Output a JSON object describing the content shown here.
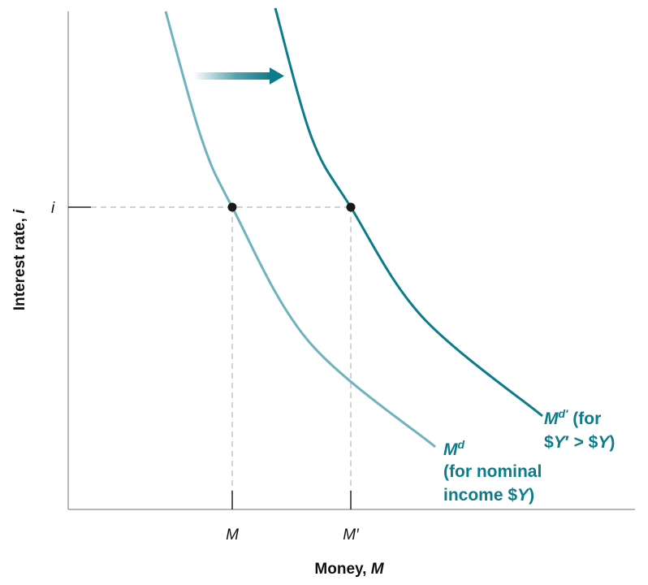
{
  "chart_data": {
    "type": "line",
    "title": "",
    "xlabel": "Money, M",
    "ylabel": "Interest rate, i",
    "x_ticks": [
      "M",
      "M′"
    ],
    "y_ticks": [
      "i"
    ],
    "series": [
      {
        "name": "M^d (for nominal income $Y)",
        "color": "#6fb4bd",
        "label_lines": [
          "M^d",
          "(for nominal",
          "income $Y)"
        ]
      },
      {
        "name": "M^d′ (for $Y′ > $Y)",
        "color": "#0c7c8a",
        "label_lines": [
          "M^d′ (for",
          "$Y′ > $Y)"
        ]
      }
    ],
    "points": [
      {
        "series": 0,
        "x_tick": "M",
        "y_tick": "i"
      },
      {
        "series": 1,
        "x_tick": "M′",
        "y_tick": "i"
      }
    ],
    "annotation": "shift-right-arrow",
    "grid": false,
    "legend": "none"
  }
}
